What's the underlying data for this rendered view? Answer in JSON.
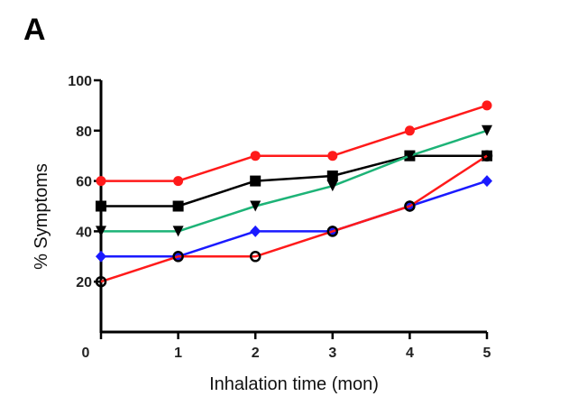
{
  "panel_label": "A",
  "chart_data": {
    "type": "line",
    "title": "",
    "xlabel": "Inhalation time (mon)",
    "ylabel": "% Symptoms",
    "x": [
      0,
      1,
      2,
      3,
      4,
      5
    ],
    "xlim": [
      0,
      5
    ],
    "ylim": [
      0,
      100
    ],
    "xticks": [
      "0",
      "1",
      "2",
      "3",
      "4",
      "5"
    ],
    "yticks": [
      "20",
      "40",
      "60",
      "80",
      "100"
    ],
    "ytick_values": [
      20,
      40,
      60,
      80,
      100
    ],
    "grid": false,
    "legend": "none",
    "series": [
      {
        "name": "red circles (upper)",
        "color": "#ff1a1a",
        "marker": "filled-circle",
        "values": [
          60,
          60,
          70,
          70,
          80,
          90
        ]
      },
      {
        "name": "black squares",
        "color": "#000000",
        "marker": "square",
        "values": [
          50,
          50,
          60,
          62,
          70,
          70
        ]
      },
      {
        "name": "green / black triangles",
        "color": "#1db377",
        "marker_color": "#000000",
        "marker": "triangle-down",
        "values": [
          40,
          40,
          50,
          58,
          70,
          80
        ]
      },
      {
        "name": "blue diamonds",
        "color": "#1a1aff",
        "marker": "diamond",
        "values": [
          30,
          30,
          40,
          40,
          50,
          60
        ]
      },
      {
        "name": "red / open circles",
        "color": "#ff1a1a",
        "marker_color": "#000000",
        "marker": "open-circle",
        "values": [
          20,
          30,
          30,
          40,
          50,
          70
        ]
      }
    ]
  }
}
